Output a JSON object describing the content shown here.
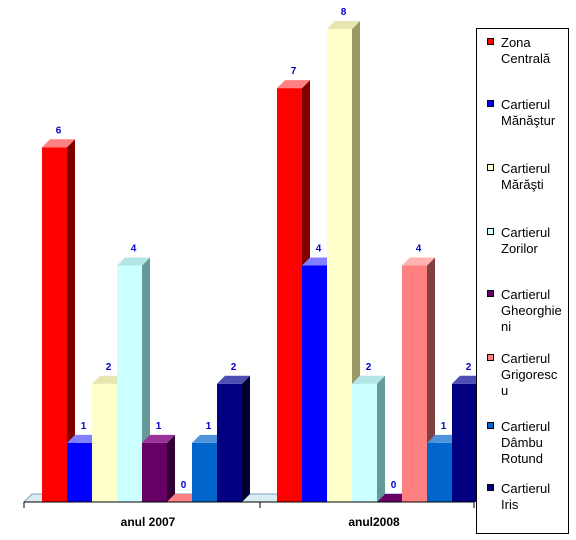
{
  "chart_data": {
    "type": "bar",
    "categories": [
      "anul 2007",
      "anul2008"
    ],
    "ylim": [
      0,
      8
    ],
    "series": [
      {
        "name": "Zona Centrală",
        "values": [
          6,
          7
        ],
        "color": "#ff0000",
        "side": "#800000",
        "top": "#ff8080"
      },
      {
        "name": "Cartierul Mănăştur",
        "values": [
          1,
          4
        ],
        "color": "#0000ff",
        "side": "#000080",
        "top": "#8080ff"
      },
      {
        "name": "Cartierul Mărăşti",
        "values": [
          2,
          8
        ],
        "color": "#ffffcc",
        "side": "#999966",
        "top": "#e6e6b3"
      },
      {
        "name": "Cartierul Zorilor",
        "values": [
          4,
          2
        ],
        "color": "#ccffff",
        "side": "#669999",
        "top": "#b3e6e6"
      },
      {
        "name": "Cartierul Gheorghieni",
        "values": [
          1,
          0
        ],
        "color": "#660066",
        "side": "#330033",
        "top": "#993399"
      },
      {
        "name": "Cartierul Grigorescu",
        "values": [
          0,
          4
        ],
        "color": "#ff8080",
        "side": "#804040",
        "top": "#ffb3b3"
      },
      {
        "name": "Cartierul Dâmbu Rotund",
        "values": [
          1,
          1
        ],
        "color": "#0066cc",
        "side": "#003366",
        "top": "#4d94db"
      },
      {
        "name": "Cartierul Iris",
        "values": [
          2,
          2
        ],
        "color": "#000080",
        "side": "#000033",
        "top": "#4d4db3"
      }
    ],
    "legend": "right",
    "grid": false
  },
  "legend_items": [
    {
      "line1": "Zona",
      "line2": "Centrală",
      "line3": ""
    },
    {
      "line1": "Cartierul",
      "line2": "Mănăştur",
      "line3": ""
    },
    {
      "line1": "Cartierul",
      "line2": "Mărăşti",
      "line3": ""
    },
    {
      "line1": "Cartierul",
      "line2": "Zorilor",
      "line3": ""
    },
    {
      "line1": "Cartierul",
      "line2": "Gheorghie",
      "line3": "ni"
    },
    {
      "line1": "Cartierul",
      "line2": "Grigoresc",
      "line3": "u"
    },
    {
      "line1": "Cartierul",
      "line2": "Dâmbu",
      "line3": "Rotund"
    },
    {
      "line1": "Cartierul",
      "line2": "Iris",
      "line3": ""
    }
  ]
}
